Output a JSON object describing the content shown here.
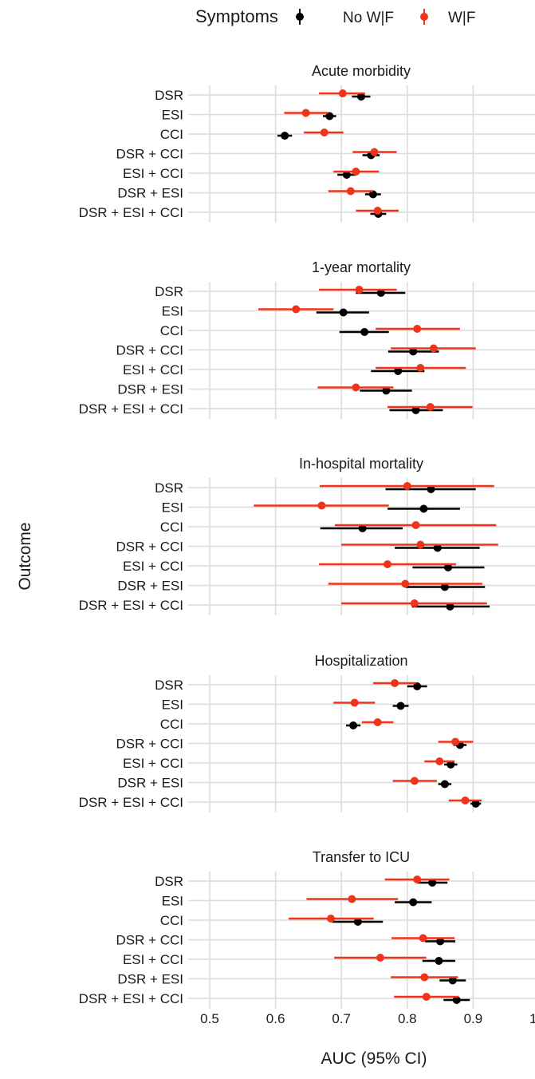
{
  "chart_data": {
    "type": "scatter",
    "subtype": "forest-plot (point estimate with 95% CI interval)",
    "xlabel": "AUC (95% CI)",
    "ylabel": "Outcome",
    "xlim": [
      0.5,
      1.0
    ],
    "x_ticks": [
      "0.5",
      "0.6",
      "0.7",
      "0.8",
      "0.9",
      "1.0"
    ],
    "x_tick_values": [
      0.5,
      0.6,
      0.7,
      0.8,
      0.9,
      1.0
    ],
    "grid": true,
    "legend": {
      "title": "Symptoms",
      "placement": "top",
      "items": [
        {
          "label": "No W|F",
          "color": "#000000"
        },
        {
          "label": "W|F",
          "color": "#f0341a"
        }
      ]
    },
    "models": [
      "DSR",
      "ESI",
      "CCI",
      "DSR + CCI",
      "ESI + CCI",
      "DSR + ESI",
      "DSR + ESI + CCI"
    ],
    "panels": [
      {
        "title": "Acute morbidity",
        "no_wf": [
          [
            0.73,
            0.716,
            0.744
          ],
          [
            0.682,
            0.672,
            0.692
          ],
          [
            0.614,
            0.603,
            0.625
          ],
          [
            0.745,
            0.732,
            0.758
          ],
          [
            0.708,
            0.694,
            0.722
          ],
          [
            0.748,
            0.736,
            0.76
          ],
          [
            0.756,
            0.744,
            0.768
          ]
        ],
        "wf": [
          [
            0.702,
            0.666,
            0.736
          ],
          [
            0.646,
            0.613,
            0.68
          ],
          [
            0.674,
            0.643,
            0.703
          ],
          [
            0.75,
            0.717,
            0.784
          ],
          [
            0.722,
            0.688,
            0.757
          ],
          [
            0.714,
            0.68,
            0.748
          ],
          [
            0.755,
            0.722,
            0.787
          ]
        ]
      },
      {
        "title": "1-year mortality",
        "no_wf": [
          [
            0.76,
            0.722,
            0.797
          ],
          [
            0.703,
            0.662,
            0.742
          ],
          [
            0.735,
            0.697,
            0.772
          ],
          [
            0.809,
            0.771,
            0.848
          ],
          [
            0.786,
            0.745,
            0.826
          ],
          [
            0.768,
            0.728,
            0.807
          ],
          [
            0.813,
            0.773,
            0.854
          ]
        ],
        "wf": [
          [
            0.727,
            0.666,
            0.784
          ],
          [
            0.631,
            0.574,
            0.688
          ],
          [
            0.815,
            0.752,
            0.88
          ],
          [
            0.84,
            0.775,
            0.904
          ],
          [
            0.82,
            0.752,
            0.889
          ],
          [
            0.722,
            0.664,
            0.779
          ],
          [
            0.835,
            0.77,
            0.899
          ]
        ]
      },
      {
        "title": "In-hospital mortality",
        "no_wf": [
          [
            0.836,
            0.767,
            0.904
          ],
          [
            0.825,
            0.77,
            0.88
          ],
          [
            0.732,
            0.668,
            0.793
          ],
          [
            0.846,
            0.781,
            0.91
          ],
          [
            0.862,
            0.808,
            0.917
          ],
          [
            0.857,
            0.797,
            0.918
          ],
          [
            0.865,
            0.807,
            0.925
          ]
        ],
        "wf": [
          [
            0.8,
            0.667,
            0.932
          ],
          [
            0.67,
            0.567,
            0.772
          ],
          [
            0.813,
            0.69,
            0.935
          ],
          [
            0.82,
            0.7,
            0.938
          ],
          [
            0.77,
            0.666,
            0.874
          ],
          [
            0.797,
            0.68,
            0.914
          ],
          [
            0.811,
            0.7,
            0.921
          ]
        ]
      },
      {
        "title": "Hospitalization",
        "no_wf": [
          [
            0.815,
            0.8,
            0.83
          ],
          [
            0.79,
            0.778,
            0.802
          ],
          [
            0.718,
            0.707,
            0.729
          ],
          [
            0.88,
            0.87,
            0.89
          ],
          [
            0.866,
            0.856,
            0.876
          ],
          [
            0.857,
            0.847,
            0.867
          ],
          [
            0.904,
            0.896,
            0.912
          ]
        ],
        "wf": [
          [
            0.781,
            0.748,
            0.813
          ],
          [
            0.72,
            0.688,
            0.751
          ],
          [
            0.755,
            0.731,
            0.779
          ],
          [
            0.873,
            0.847,
            0.9
          ],
          [
            0.849,
            0.826,
            0.872
          ],
          [
            0.811,
            0.778,
            0.845
          ],
          [
            0.888,
            0.863,
            0.913
          ]
        ]
      },
      {
        "title": "Transfer to ICU",
        "no_wf": [
          [
            0.838,
            0.815,
            0.861
          ],
          [
            0.809,
            0.781,
            0.837
          ],
          [
            0.725,
            0.686,
            0.763
          ],
          [
            0.85,
            0.827,
            0.873
          ],
          [
            0.848,
            0.823,
            0.873
          ],
          [
            0.869,
            0.849,
            0.889
          ],
          [
            0.875,
            0.855,
            0.895
          ]
        ],
        "wf": [
          [
            0.815,
            0.766,
            0.864
          ],
          [
            0.716,
            0.647,
            0.786
          ],
          [
            0.684,
            0.62,
            0.749
          ],
          [
            0.824,
            0.776,
            0.872
          ],
          [
            0.759,
            0.689,
            0.829
          ],
          [
            0.826,
            0.775,
            0.877
          ],
          [
            0.829,
            0.78,
            0.878
          ]
        ]
      }
    ]
  }
}
